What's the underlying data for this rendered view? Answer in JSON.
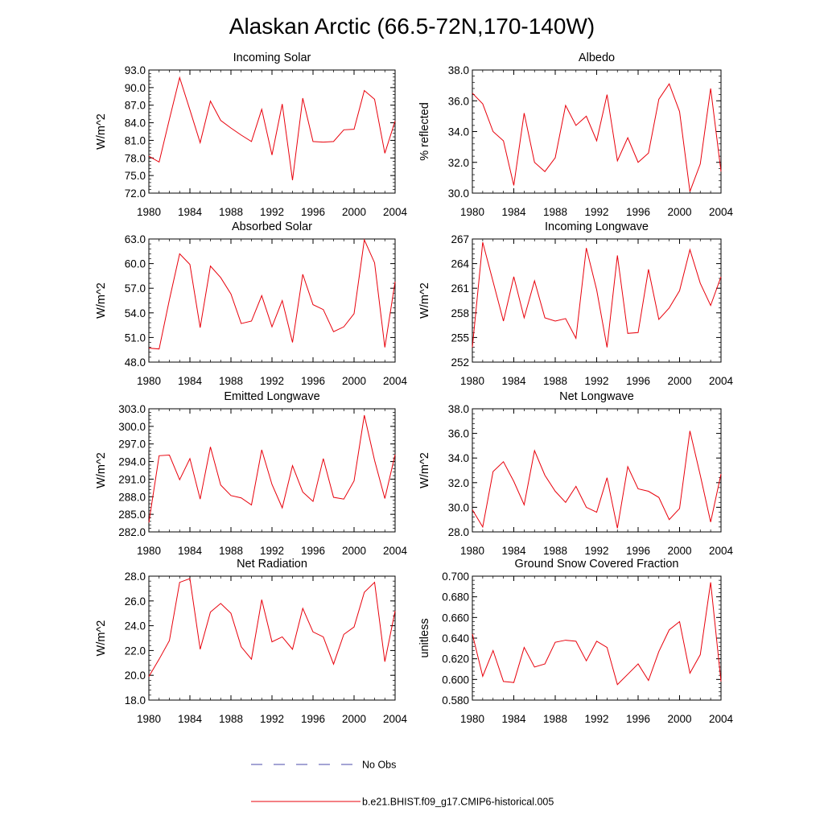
{
  "title": "Alaskan Arctic (66.5-72N,170-140W)",
  "legend": {
    "obs_label": "No Obs",
    "obs_color": "#4a4aa8",
    "model_label": "b.e21.BHIST.f09_g17.CMIP6-historical.005",
    "model_color": "#e8000b"
  },
  "chart_data": [
    {
      "type": "line",
      "title": "Incoming Solar",
      "ylabel": "W/m^2",
      "xlim": [
        1980,
        2004
      ],
      "ylim": [
        72,
        93
      ],
      "yticks": [
        "72.0",
        "75.0",
        "78.0",
        "81.0",
        "84.0",
        "87.0",
        "90.0",
        "93.0"
      ],
      "xticks": [
        "1980",
        "1984",
        "1988",
        "1992",
        "1996",
        "2000",
        "2004"
      ],
      "x": [
        1980,
        1981,
        1982,
        1983,
        1984,
        1985,
        1986,
        1987,
        1988,
        1989,
        1990,
        1991,
        1992,
        1993,
        1994,
        1995,
        1996,
        1997,
        1998,
        1999,
        2000,
        2001,
        2002,
        2003,
        2004
      ],
      "series": [
        {
          "values": [
            78.3,
            77.3,
            84.6,
            91.7,
            86.2,
            80.6,
            87.7,
            84.4,
            83.1,
            81.9,
            80.8,
            86.3,
            78.5,
            87.2,
            74.2,
            88.2,
            80.8,
            80.7,
            80.8,
            82.8,
            82.9,
            89.5,
            88.0,
            78.8,
            84.3
          ]
        }
      ]
    },
    {
      "type": "line",
      "title": "Albedo",
      "ylabel": "% reflected",
      "xlim": [
        1980,
        2004
      ],
      "ylim": [
        30,
        38
      ],
      "yticks": [
        "30.0",
        "32.0",
        "34.0",
        "36.0",
        "38.0"
      ],
      "xticks": [
        "1980",
        "1984",
        "1988",
        "1992",
        "1996",
        "2000",
        "2004"
      ],
      "x": [
        1980,
        1981,
        1982,
        1983,
        1984,
        1985,
        1986,
        1987,
        1988,
        1989,
        1990,
        1991,
        1992,
        1993,
        1994,
        1995,
        1996,
        1997,
        1998,
        1999,
        2000,
        2001,
        2002,
        2003,
        2004
      ],
      "series": [
        {
          "values": [
            36.5,
            35.8,
            34.0,
            33.4,
            30.5,
            35.2,
            32.0,
            31.4,
            32.3,
            35.7,
            34.4,
            35.0,
            33.4,
            36.4,
            32.1,
            33.6,
            32.0,
            32.6,
            36.1,
            37.1,
            35.3,
            30.1,
            31.9,
            36.8,
            31.4
          ]
        }
      ]
    },
    {
      "type": "line",
      "title": "Absorbed Solar",
      "ylabel": "W/m^2",
      "xlim": [
        1980,
        2004
      ],
      "ylim": [
        48,
        63
      ],
      "yticks": [
        "48.0",
        "51.0",
        "54.0",
        "57.0",
        "60.0",
        "63.0"
      ],
      "xticks": [
        "1980",
        "1984",
        "1988",
        "1992",
        "1996",
        "2000",
        "2004"
      ],
      "x": [
        1980,
        1981,
        1982,
        1983,
        1984,
        1985,
        1986,
        1987,
        1988,
        1989,
        1990,
        1991,
        1992,
        1993,
        1994,
        1995,
        1996,
        1997,
        1998,
        1999,
        2000,
        2001,
        2002,
        2003,
        2004
      ],
      "series": [
        {
          "values": [
            49.7,
            49.6,
            55.6,
            61.2,
            59.9,
            52.2,
            59.7,
            58.3,
            56.3,
            52.7,
            53.0,
            56.1,
            52.3,
            55.5,
            50.4,
            58.7,
            55.0,
            54.4,
            51.7,
            52.3,
            53.9,
            62.9,
            60.1,
            49.8,
            57.8
          ]
        }
      ]
    },
    {
      "type": "line",
      "title": "Incoming Longwave",
      "ylabel": "W/m^2",
      "xlim": [
        1980,
        2004
      ],
      "ylim": [
        252,
        267
      ],
      "yticks": [
        "252",
        "255",
        "258",
        "261",
        "264",
        "267"
      ],
      "xticks": [
        "1980",
        "1984",
        "1988",
        "1992",
        "1996",
        "2000",
        "2004"
      ],
      "x": [
        1980,
        1981,
        1982,
        1983,
        1984,
        1985,
        1986,
        1987,
        1988,
        1989,
        1990,
        1991,
        1992,
        1993,
        1994,
        1995,
        1996,
        1997,
        1998,
        1999,
        2000,
        2001,
        2002,
        2003,
        2004
      ],
      "series": [
        {
          "values": [
            253.8,
            266.6,
            261.8,
            257.0,
            262.4,
            257.4,
            261.9,
            257.4,
            257.0,
            257.3,
            254.9,
            265.9,
            260.8,
            253.8,
            265.0,
            255.5,
            255.6,
            263.3,
            257.2,
            258.6,
            260.7,
            265.7,
            261.6,
            258.9,
            262.4
          ]
        }
      ]
    },
    {
      "type": "line",
      "title": "Emitted Longwave",
      "ylabel": "W/m^2",
      "xlim": [
        1980,
        2004
      ],
      "ylim": [
        282,
        303
      ],
      "yticks": [
        "282.0",
        "285.0",
        "288.0",
        "291.0",
        "294.0",
        "297.0",
        "300.0",
        "303.0"
      ],
      "xticks": [
        "1980",
        "1984",
        "1988",
        "1992",
        "1996",
        "2000",
        "2004"
      ],
      "x": [
        1980,
        1981,
        1982,
        1983,
        1984,
        1985,
        1986,
        1987,
        1988,
        1989,
        1990,
        1991,
        1992,
        1993,
        1994,
        1995,
        1996,
        1997,
        1998,
        1999,
        2000,
        2001,
        2002,
        2003,
        2004
      ],
      "series": [
        {
          "values": [
            283.6,
            295.0,
            295.1,
            290.9,
            294.5,
            287.6,
            296.5,
            290.0,
            288.2,
            287.8,
            286.6,
            296.0,
            290.1,
            286.1,
            293.3,
            288.8,
            287.2,
            294.5,
            287.9,
            287.6,
            290.7,
            301.9,
            294.2,
            287.7,
            295.2
          ]
        }
      ]
    },
    {
      "type": "line",
      "title": "Net Longwave",
      "ylabel": "W/m^2",
      "xlim": [
        1980,
        2004
      ],
      "ylim": [
        28,
        38
      ],
      "yticks": [
        "28.0",
        "30.0",
        "32.0",
        "34.0",
        "36.0",
        "38.0"
      ],
      "xticks": [
        "1980",
        "1984",
        "1988",
        "1992",
        "1996",
        "2000",
        "2004"
      ],
      "x": [
        1980,
        1981,
        1982,
        1983,
        1984,
        1985,
        1986,
        1987,
        1988,
        1989,
        1990,
        1991,
        1992,
        1993,
        1994,
        1995,
        1996,
        1997,
        1998,
        1999,
        2000,
        2001,
        2002,
        2003,
        2004
      ],
      "series": [
        {
          "values": [
            29.8,
            28.4,
            32.9,
            33.7,
            32.1,
            30.2,
            34.6,
            32.6,
            31.3,
            30.4,
            31.7,
            30.0,
            29.6,
            32.4,
            28.3,
            33.3,
            31.5,
            31.3,
            30.8,
            29.0,
            29.9,
            36.2,
            32.6,
            28.8,
            32.7
          ]
        }
      ]
    },
    {
      "type": "line",
      "title": "Net Radiation",
      "ylabel": "W/m^2",
      "xlim": [
        1980,
        2004
      ],
      "ylim": [
        18,
        28
      ],
      "yticks": [
        "18.0",
        "20.0",
        "22.0",
        "24.0",
        "26.0",
        "28.0"
      ],
      "xticks": [
        "1980",
        "1984",
        "1988",
        "1992",
        "1996",
        "2000",
        "2004"
      ],
      "x": [
        1980,
        1981,
        1982,
        1983,
        1984,
        1985,
        1986,
        1987,
        1988,
        1989,
        1990,
        1991,
        1992,
        1993,
        1994,
        1995,
        1996,
        1997,
        1998,
        1999,
        2000,
        2001,
        2002,
        2003,
        2004
      ],
      "series": [
        {
          "values": [
            19.9,
            21.3,
            22.8,
            27.5,
            27.8,
            22.1,
            25.1,
            25.8,
            25.0,
            22.3,
            21.3,
            26.1,
            22.7,
            23.1,
            22.1,
            25.4,
            23.5,
            23.1,
            20.9,
            23.3,
            23.9,
            26.7,
            27.5,
            21.1,
            25.2
          ]
        }
      ]
    },
    {
      "type": "line",
      "title": "Ground Snow Covered Fraction",
      "ylabel": "unitless",
      "xlim": [
        1980,
        2004
      ],
      "ylim": [
        0.58,
        0.7
      ],
      "yticks": [
        "0.580",
        "0.600",
        "0.620",
        "0.640",
        "0.660",
        "0.680",
        "0.700"
      ],
      "xticks": [
        "1980",
        "1984",
        "1988",
        "1992",
        "1996",
        "2000",
        "2004"
      ],
      "x": [
        1980,
        1981,
        1982,
        1983,
        1984,
        1985,
        1986,
        1987,
        1988,
        1989,
        1990,
        1991,
        1992,
        1993,
        1994,
        1995,
        1996,
        1997,
        1998,
        1999,
        2000,
        2001,
        2002,
        2003,
        2004
      ],
      "series": [
        {
          "values": [
            0.644,
            0.603,
            0.628,
            0.598,
            0.597,
            0.631,
            0.612,
            0.615,
            0.636,
            0.638,
            0.637,
            0.618,
            0.637,
            0.631,
            0.595,
            0.605,
            0.615,
            0.599,
            0.627,
            0.648,
            0.656,
            0.606,
            0.624,
            0.694,
            0.598
          ]
        }
      ]
    }
  ]
}
